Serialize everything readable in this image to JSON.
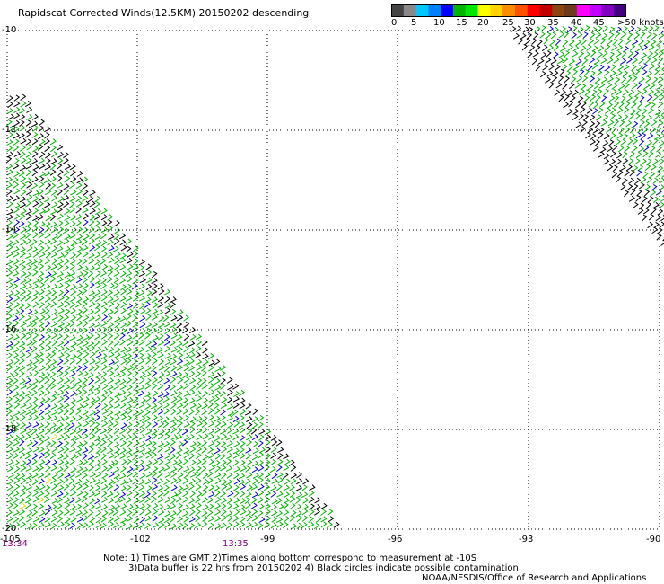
{
  "title": "Rapidscat Corrected Winds(12.5KM) 20150202 descending",
  "colorbar": {
    "colors": [
      "#444444",
      "#888888",
      "#00c8ff",
      "#0080ff",
      "#0000ff",
      "#00b400",
      "#00e600",
      "#ffff00",
      "#ffd200",
      "#ff8c00",
      "#ff5000",
      "#ff0000",
      "#c00000",
      "#8b4513",
      "#6b3a1f",
      "#ff00ff",
      "#c000ff",
      "#8000c0",
      "#400080"
    ],
    "labels": [
      "0",
      "5",
      "10",
      "15",
      "20",
      "25",
      "30",
      "35",
      "40",
      "45",
      ">50 knots"
    ]
  },
  "lat_labels": [
    "-10",
    "-12",
    "-14",
    "-16",
    "-18",
    "-20"
  ],
  "lon_labels": [
    "-105",
    "-102",
    "-99",
    "-96",
    "-93",
    "-90"
  ],
  "time_labels": [
    "13:34",
    "13:35"
  ],
  "notes": {
    "line1": "Note: 1) Times are GMT 2)Times along bottom correspond to measurement at -10S",
    "line2": "3)Data buffer is 22 hrs from 20150202 4) Black circles indicate possible contamination",
    "line3": "NOAA/NESDIS/Office of Research and Applications"
  },
  "barb_colors": {
    "calm": "#000000",
    "light": "#0000cc",
    "moderate": "#00b400",
    "strong": "#e6e600"
  }
}
